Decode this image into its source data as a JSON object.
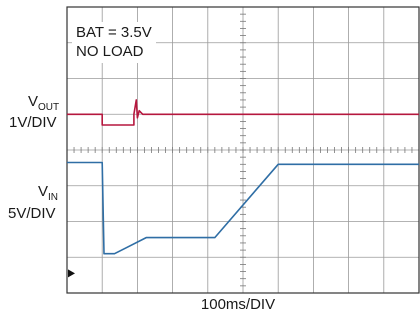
{
  "chart_data": {
    "type": "line",
    "annotation": [
      "BAT = 3.5V",
      "NO LOAD"
    ],
    "xlabel": "100ms/DIV",
    "grid": true,
    "divisions": {
      "x": 10,
      "y": 8
    },
    "channels": [
      {
        "label_main": "V",
        "label_sub": "OUT",
        "scale": "1V/DIV",
        "color": "#b5173e"
      },
      {
        "label_main": "V",
        "label_sub": "IN",
        "scale": "5V/DIV",
        "color": "#2f6ea5"
      }
    ],
    "series": [
      {
        "x": [
          0,
          1.0,
          1.0,
          1.9,
          1.9,
          1.97,
          2.0,
          2.05,
          2.15,
          10
        ],
        "y": [
          5.0,
          5.0,
          4.7,
          4.7,
          5.0,
          5.4,
          4.9,
          5.1,
          5.0,
          5.0
        ]
      },
      {
        "x": [
          0,
          1.0,
          1.05,
          1.35,
          2.25,
          4.2,
          6.0,
          10
        ],
        "y": [
          3.65,
          3.65,
          1.1,
          1.1,
          1.55,
          1.55,
          3.6,
          3.6
        ]
      }
    ],
    "ground_marker_y": 0.55
  }
}
